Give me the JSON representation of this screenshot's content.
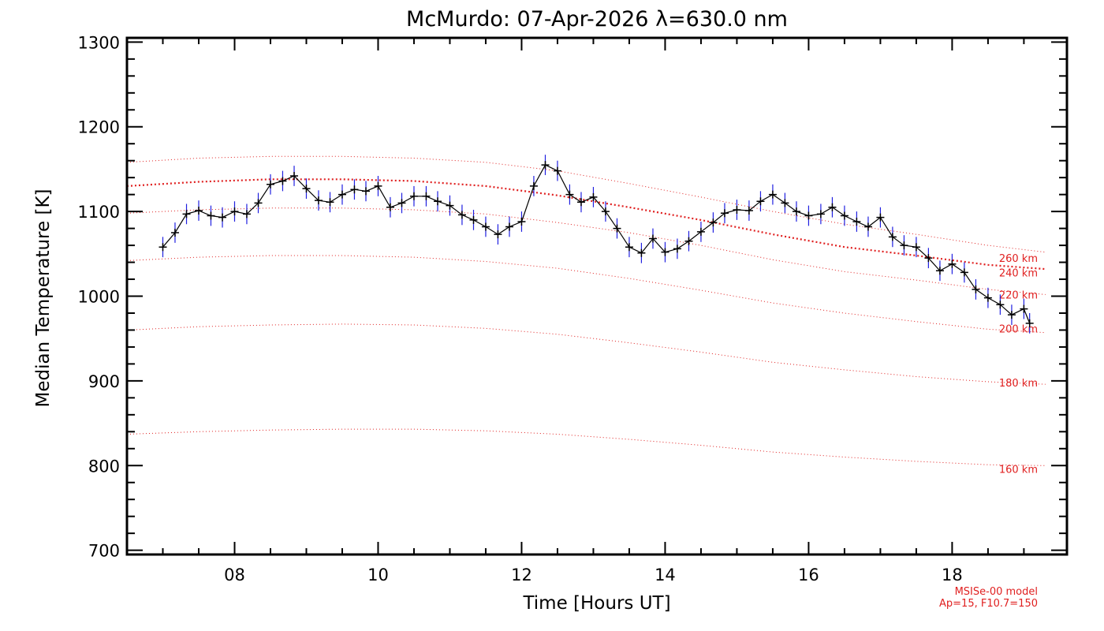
{
  "chart_data": {
    "type": "line",
    "title": "McMurdo: 07-Apr-2026 λ=630.0 nm",
    "xlabel": "Time [Hours UT]",
    "ylabel": "Median Temperature [K]",
    "xlim": [
      6.5,
      19.6
    ],
    "ylim": [
      695,
      1305
    ],
    "x_ticks": [
      {
        "value": 8,
        "label": "08"
      },
      {
        "value": 10,
        "label": "10"
      },
      {
        "value": 12,
        "label": "12"
      },
      {
        "value": 14,
        "label": "14"
      },
      {
        "value": 16,
        "label": "16"
      },
      {
        "value": 18,
        "label": "18"
      }
    ],
    "y_ticks": [
      {
        "value": 700,
        "label": "700"
      },
      {
        "value": 800,
        "label": "800"
      },
      {
        "value": 900,
        "label": "900"
      },
      {
        "value": 1000,
        "label": "1000"
      },
      {
        "value": 1100,
        "label": "1100"
      },
      {
        "value": 1200,
        "label": "1200"
      },
      {
        "value": 1300,
        "label": "1300"
      }
    ],
    "series": [
      {
        "name": "Median Temperature",
        "color": "#000000",
        "errorbar_color": "#2020e0",
        "error": 12,
        "x": [
          7.0,
          7.17,
          7.33,
          7.5,
          7.67,
          7.83,
          8.0,
          8.17,
          8.33,
          8.5,
          8.67,
          8.83,
          9.0,
          9.17,
          9.33,
          9.5,
          9.67,
          9.83,
          10.0,
          10.17,
          10.33,
          10.5,
          10.67,
          10.83,
          11.0,
          11.17,
          11.33,
          11.5,
          11.67,
          11.83,
          12.0,
          12.17,
          12.33,
          12.5,
          12.67,
          12.83,
          13.0,
          13.17,
          13.33,
          13.5,
          13.67,
          13.83,
          14.0,
          14.17,
          14.33,
          14.5,
          14.67,
          14.83,
          15.0,
          15.17,
          15.33,
          15.5,
          15.67,
          15.83,
          16.0,
          16.17,
          16.33,
          16.5,
          16.67,
          16.83,
          17.0,
          17.17,
          17.33,
          17.5,
          17.67,
          17.83,
          18.0,
          18.17,
          18.33,
          18.5,
          18.67,
          18.83,
          19.0,
          19.08
        ],
        "y": [
          1058,
          1075,
          1097,
          1101,
          1095,
          1093,
          1100,
          1097,
          1110,
          1132,
          1136,
          1142,
          1127,
          1113,
          1111,
          1120,
          1126,
          1124,
          1130,
          1105,
          1110,
          1118,
          1118,
          1112,
          1107,
          1096,
          1090,
          1082,
          1073,
          1082,
          1088,
          1130,
          1155,
          1148,
          1120,
          1111,
          1117,
          1100,
          1080,
          1058,
          1051,
          1068,
          1052,
          1056,
          1065,
          1076,
          1087,
          1098,
          1102,
          1101,
          1112,
          1120,
          1110,
          1100,
          1095,
          1097,
          1105,
          1095,
          1088,
          1082,
          1093,
          1070,
          1060,
          1058,
          1045,
          1030,
          1038,
          1028,
          1008,
          998,
          990,
          978,
          985,
          968
        ]
      }
    ],
    "model_curves": [
      {
        "label": "260 km",
        "x": [
          6.5,
          7.5,
          8.5,
          9.5,
          10.5,
          11.5,
          12.5,
          13.5,
          14.5,
          15.5,
          16.5,
          17.5,
          18.5,
          19.3
        ],
        "y": [
          1158,
          1163,
          1165,
          1165,
          1163,
          1158,
          1148,
          1133,
          1117,
          1100,
          1085,
          1073,
          1060,
          1052
        ]
      },
      {
        "label": "240 km",
        "x": [
          6.5,
          7.5,
          8.5,
          9.5,
          10.5,
          11.5,
          12.5,
          13.5,
          14.5,
          15.5,
          16.5,
          17.5,
          18.5,
          19.3
        ],
        "y": [
          1130,
          1135,
          1138,
          1138,
          1136,
          1130,
          1119,
          1105,
          1090,
          1073,
          1058,
          1048,
          1037,
          1032
        ]
      },
      {
        "label": "220 km",
        "x": [
          6.5,
          7.5,
          8.5,
          9.5,
          10.5,
          11.5,
          12.5,
          13.5,
          14.5,
          15.5,
          16.5,
          17.5,
          18.5,
          19.3
        ],
        "y": [
          1098,
          1102,
          1104,
          1104,
          1102,
          1097,
          1087,
          1075,
          1060,
          1043,
          1029,
          1019,
          1008,
          1002
        ]
      },
      {
        "label": "200 km",
        "x": [
          6.5,
          7.5,
          8.5,
          9.5,
          10.5,
          11.5,
          12.5,
          13.5,
          14.5,
          15.5,
          16.5,
          17.5,
          18.5,
          19.3
        ],
        "y": [
          1042,
          1046,
          1048,
          1048,
          1046,
          1041,
          1033,
          1021,
          1007,
          992,
          980,
          970,
          961,
          957
        ]
      },
      {
        "label": "180 km",
        "x": [
          6.5,
          7.5,
          8.5,
          9.5,
          10.5,
          11.5,
          12.5,
          13.5,
          14.5,
          15.5,
          16.5,
          17.5,
          18.5,
          19.3
        ],
        "y": [
          960,
          964,
          966,
          967,
          966,
          962,
          955,
          945,
          934,
          922,
          913,
          905,
          899,
          896
        ]
      },
      {
        "label": "160 km",
        "x": [
          6.5,
          7.5,
          8.5,
          9.5,
          10.5,
          11.5,
          12.5,
          13.5,
          14.5,
          15.5,
          16.5,
          17.5,
          18.5,
          19.3
        ],
        "y": [
          837,
          840,
          842,
          843,
          843,
          841,
          837,
          831,
          824,
          816,
          810,
          805,
          801,
          800
        ]
      }
    ],
    "model_curve_color": "#e02020",
    "model_label_positions": [
      {
        "text": "260 km",
        "y": 1045
      },
      {
        "text": "240 km",
        "y": 1028
      },
      {
        "text": "220 km",
        "y": 1002
      },
      {
        "text": "200 km",
        "y": 962
      },
      {
        "text": "180 km",
        "y": 898
      },
      {
        "text": "160 km",
        "y": 796
      }
    ],
    "annotations": {
      "model_name": "MSISe-00 model",
      "model_params": "Ap=15, F10.7=150"
    }
  }
}
